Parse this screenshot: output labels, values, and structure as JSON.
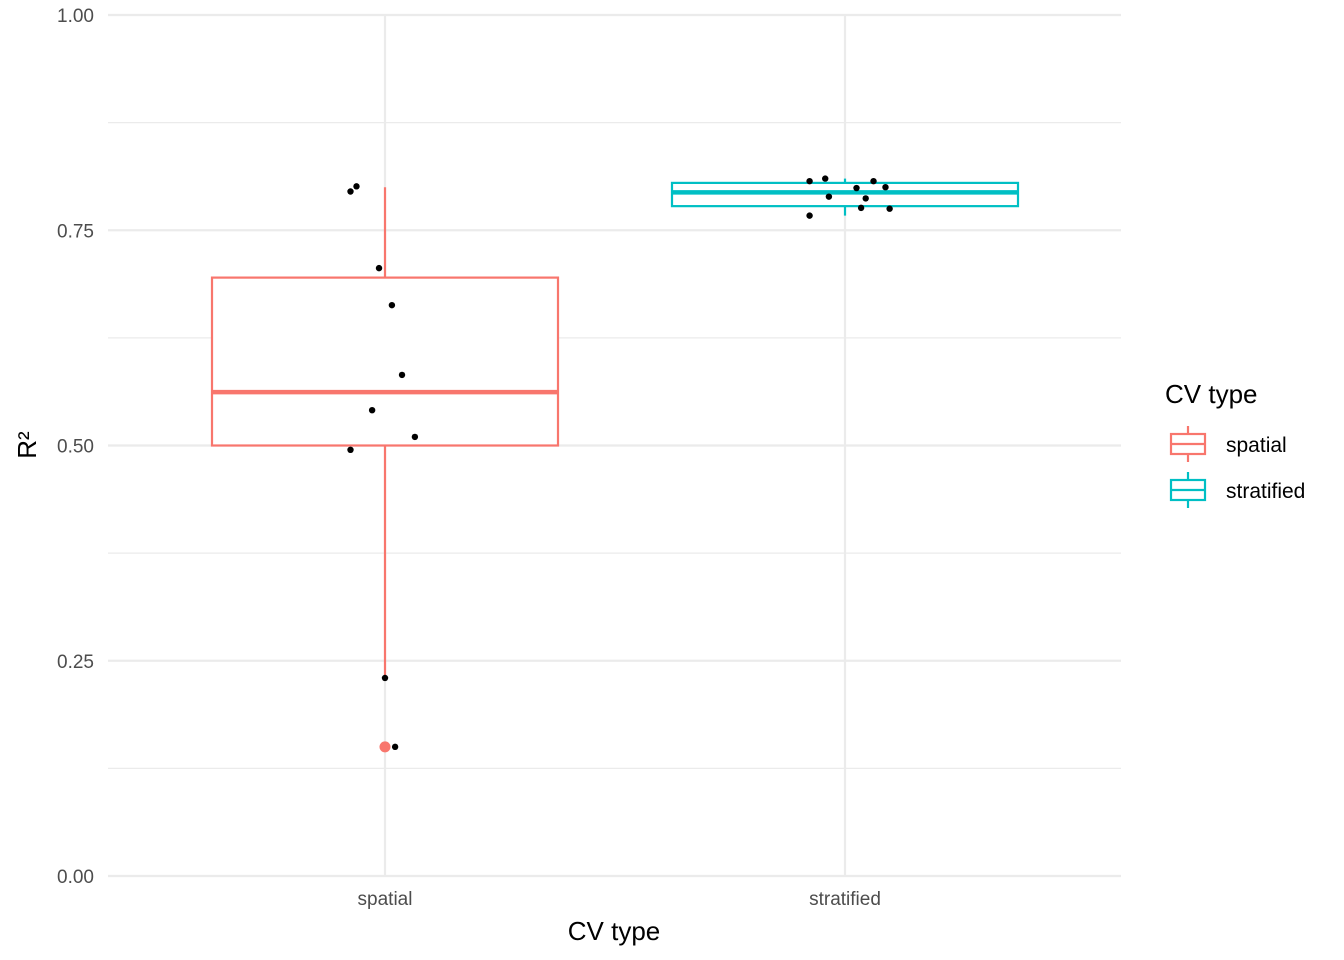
{
  "chart_data": {
    "type": "boxplot",
    "xlabel": "CV type",
    "ylabel": "R²",
    "ylim": [
      0,
      1
    ],
    "yticks": [
      "0.00",
      "0.25",
      "0.50",
      "0.75",
      "1.00"
    ],
    "categories": [
      "spatial",
      "stratified"
    ],
    "legend": {
      "title": "CV type",
      "position": "right",
      "items": [
        "spatial",
        "stratified"
      ]
    },
    "colors": {
      "spatial": "#F8766D",
      "stratified": "#00BFC4",
      "points": "#000000",
      "grid": "#ebebeb"
    },
    "grid": true,
    "boxes": [
      {
        "category": "spatial",
        "q1": 0.5,
        "median": 0.562,
        "q3": 0.695,
        "whisker_low": 0.23,
        "whisker_high": 0.8,
        "outliers": [
          0.15
        ]
      },
      {
        "category": "stratified",
        "q1": 0.778,
        "median": 0.794,
        "q3": 0.805,
        "whisker_low": 0.767,
        "whisker_high": 0.81,
        "outliers": []
      }
    ],
    "points": [
      {
        "category": "spatial",
        "jitter": -0.075,
        "y": 0.795
      },
      {
        "category": "spatial",
        "jitter": -0.062,
        "y": 0.801
      },
      {
        "category": "spatial",
        "jitter": -0.013,
        "y": 0.706
      },
      {
        "category": "spatial",
        "jitter": 0.015,
        "y": 0.663
      },
      {
        "category": "spatial",
        "jitter": 0.037,
        "y": 0.582
      },
      {
        "category": "spatial",
        "jitter": -0.028,
        "y": 0.541
      },
      {
        "category": "spatial",
        "jitter": 0.065,
        "y": 0.51
      },
      {
        "category": "spatial",
        "jitter": -0.075,
        "y": 0.495
      },
      {
        "category": "spatial",
        "jitter": 0.0,
        "y": 0.23
      },
      {
        "category": "spatial",
        "jitter": 0.022,
        "y": 0.15
      },
      {
        "category": "stratified",
        "jitter": -0.077,
        "y": 0.807
      },
      {
        "category": "stratified",
        "jitter": -0.043,
        "y": 0.81
      },
      {
        "category": "stratified",
        "jitter": -0.035,
        "y": 0.789
      },
      {
        "category": "stratified",
        "jitter": 0.025,
        "y": 0.799
      },
      {
        "category": "stratified",
        "jitter": 0.062,
        "y": 0.807
      },
      {
        "category": "stratified",
        "jitter": 0.088,
        "y": 0.8
      },
      {
        "category": "stratified",
        "jitter": 0.045,
        "y": 0.787
      },
      {
        "category": "stratified",
        "jitter": 0.035,
        "y": 0.776
      },
      {
        "category": "stratified",
        "jitter": 0.097,
        "y": 0.775
      },
      {
        "category": "stratified",
        "jitter": -0.077,
        "y": 0.767
      }
    ]
  }
}
